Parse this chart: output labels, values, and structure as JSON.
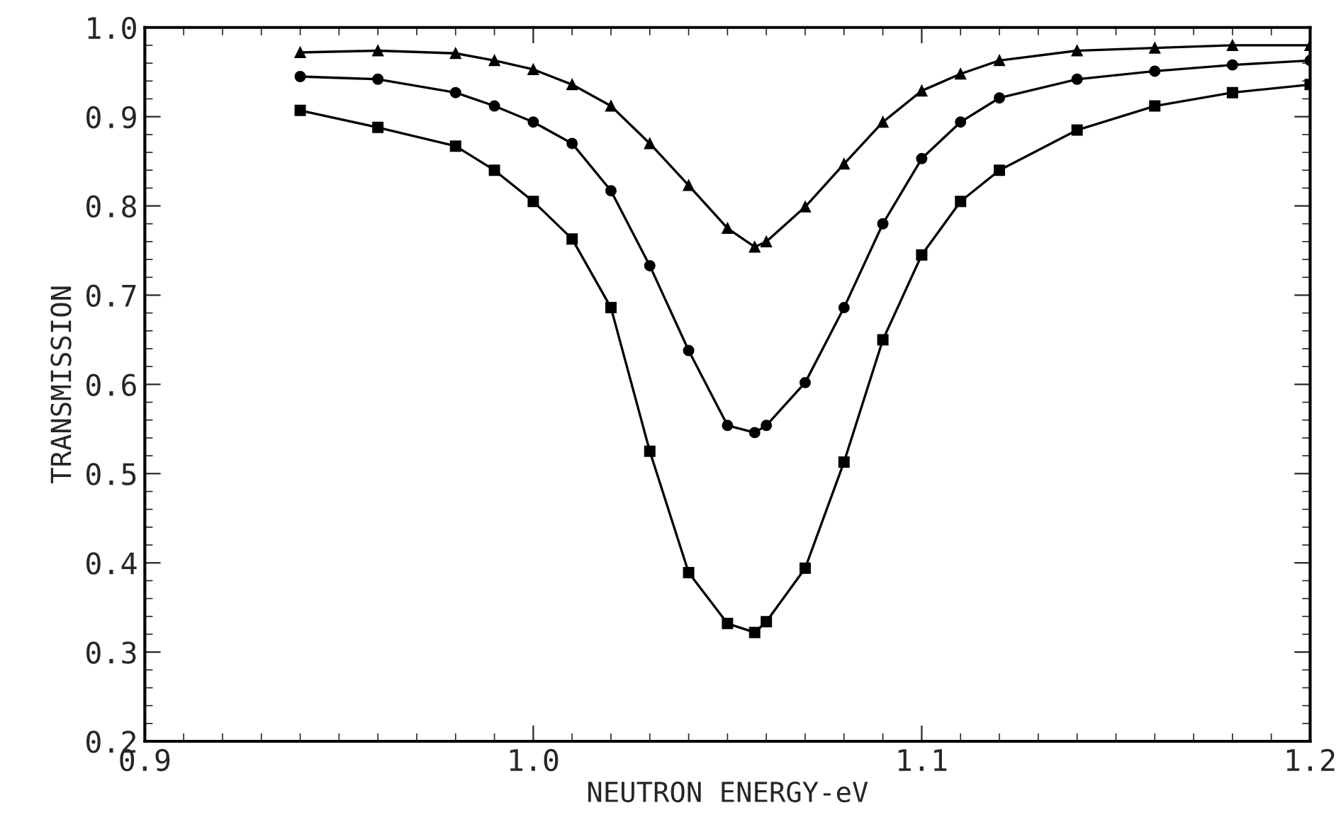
{
  "chart_data": {
    "type": "line",
    "xlabel": "NEUTRON ENERGY-eV",
    "ylabel": "TRANSMISSION",
    "x": [
      0.94,
      0.96,
      0.98,
      0.99,
      1.0,
      1.01,
      1.02,
      1.03,
      1.04,
      1.05,
      1.057,
      1.06,
      1.07,
      1.08,
      1.09,
      1.1,
      1.11,
      1.12,
      1.14,
      1.16,
      1.18,
      1.2
    ],
    "series": [
      {
        "color": "#000000",
        "marker": "triangle",
        "values": [
          0.972,
          0.974,
          0.971,
          0.963,
          0.953,
          0.936,
          0.912,
          0.87,
          0.823,
          0.775,
          0.754,
          0.76,
          0.799,
          0.847,
          0.894,
          0.929,
          0.948,
          0.963,
          0.974,
          0.977,
          0.98,
          0.98
        ]
      },
      {
        "color": "#000000",
        "marker": "circle",
        "values": [
          0.945,
          0.942,
          0.927,
          0.912,
          0.894,
          0.87,
          0.817,
          0.733,
          0.638,
          0.554,
          0.546,
          0.554,
          0.602,
          0.686,
          0.78,
          0.853,
          0.894,
          0.921,
          0.942,
          0.951,
          0.958,
          0.963
        ]
      },
      {
        "color": "#000000",
        "marker": "square",
        "values": [
          0.907,
          0.888,
          0.867,
          0.84,
          0.805,
          0.763,
          0.686,
          0.525,
          0.389,
          0.332,
          0.322,
          0.334,
          0.394,
          0.513,
          0.65,
          0.745,
          0.805,
          0.84,
          0.885,
          0.912,
          0.927,
          0.936
        ]
      }
    ],
    "xlim": [
      0.9,
      1.2
    ],
    "xticks": [
      0.9,
      {
        "value": 1.0,
        "label": "1.0"
      },
      1.1,
      1.2
    ],
    "ylim": [
      0.2,
      1.0
    ],
    "yticks": [
      0.2,
      0.3,
      0.4,
      0.5,
      0.6,
      0.7,
      0.8,
      0.9,
      {
        "value": 1.0,
        "label": "1.0"
      }
    ],
    "grid": false,
    "legend": false,
    "line_style": "solid"
  }
}
